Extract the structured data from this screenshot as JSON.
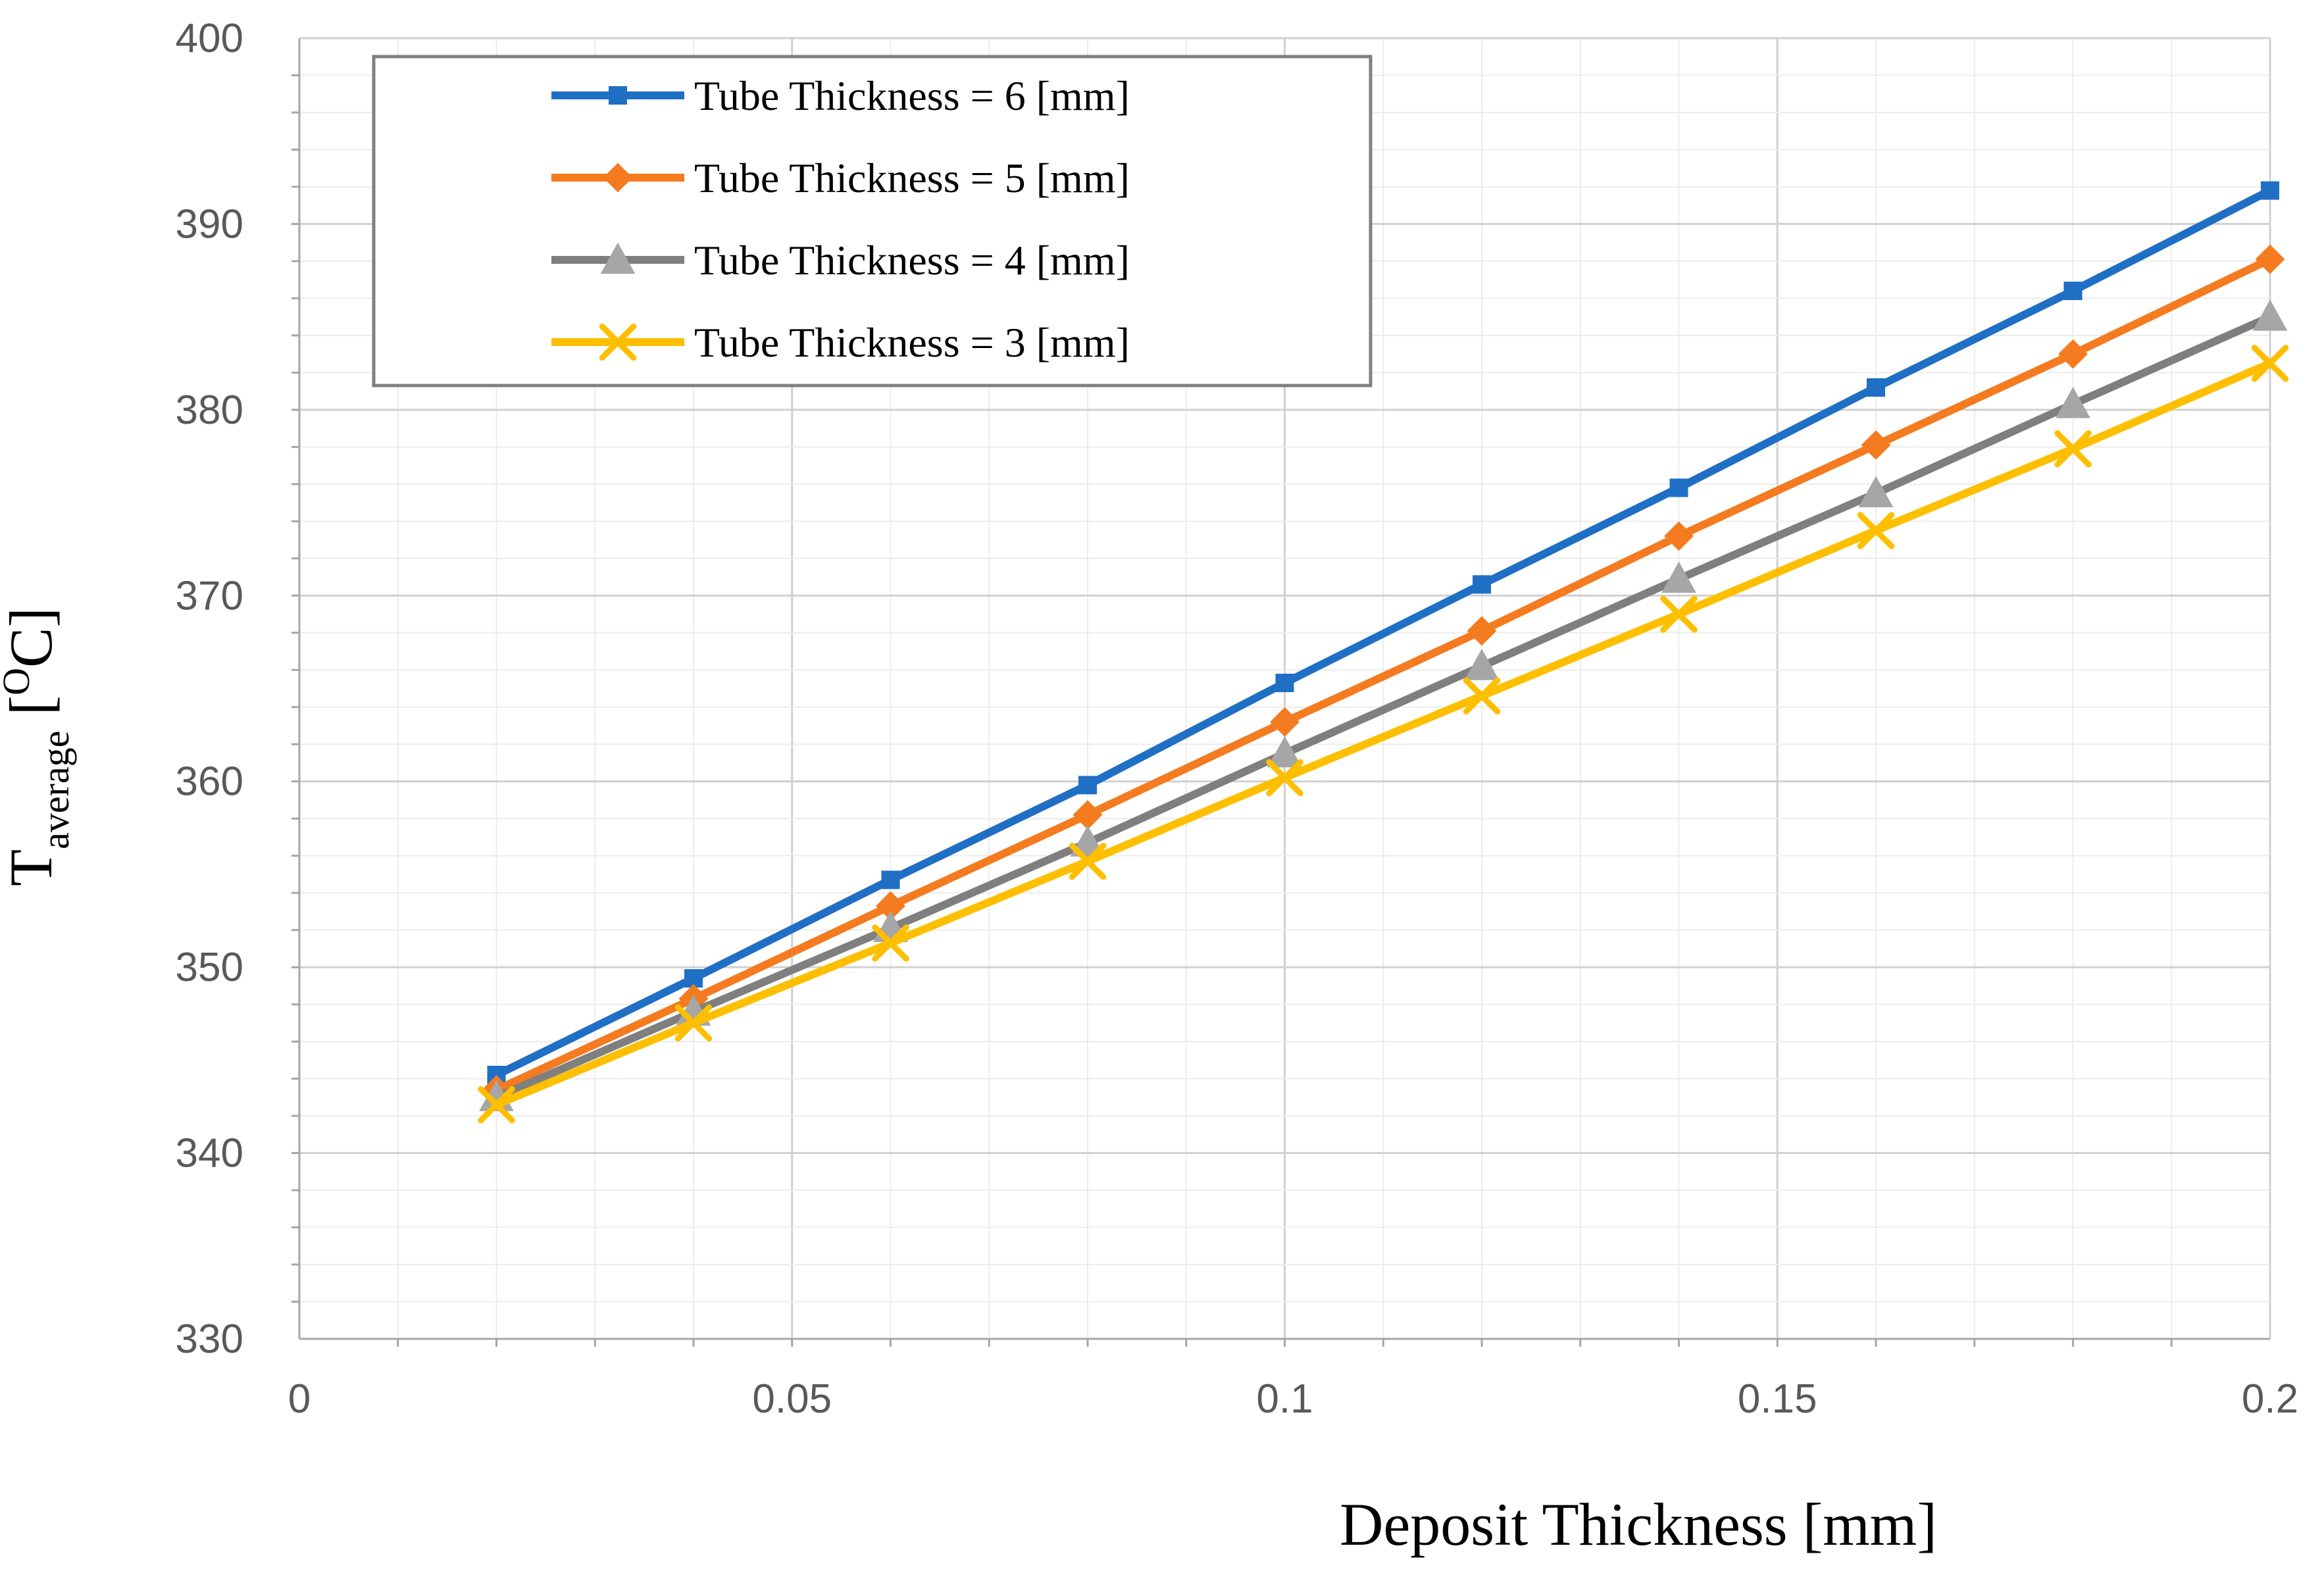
{
  "chart_data": {
    "type": "line",
    "title": "",
    "xlabel": "Deposit Thickness [mm]",
    "ylabel": {
      "main": "T",
      "subscript": "average",
      "unit_open": " [",
      "unit_superscript": "O",
      "unit_rest": "C]"
    },
    "xlim": [
      0,
      0.2
    ],
    "ylim": [
      330,
      400
    ],
    "x_ticks": [
      0,
      0.05,
      0.1,
      0.15,
      0.2
    ],
    "x_tick_labels": [
      "0",
      "0.05",
      "0.1",
      "0.15",
      "0.2"
    ],
    "y_ticks": [
      330,
      340,
      350,
      360,
      370,
      380,
      390,
      400
    ],
    "y_tick_labels": [
      "330",
      "340",
      "350",
      "360",
      "370",
      "380",
      "390",
      "400"
    ],
    "grid": true,
    "legend_position": "top-left",
    "x": [
      0.02,
      0.04,
      0.06,
      0.08,
      0.1,
      0.12,
      0.14,
      0.16,
      0.18,
      0.2
    ],
    "series": [
      {
        "name": "Tube Thickness = 6 [mm]",
        "color": "#1f6fc5",
        "marker": "square",
        "values": [
          344.2,
          349.4,
          354.7,
          359.8,
          365.3,
          370.6,
          375.8,
          381.2,
          386.4,
          391.8
        ]
      },
      {
        "name": "Tube Thickness = 5 [mm]",
        "color": "#f47b20",
        "marker": "diamond",
        "values": [
          343.4,
          348.3,
          353.3,
          358.2,
          363.2,
          368.1,
          373.2,
          378.1,
          383.0,
          388.1
        ]
      },
      {
        "name": "Tube Thickness = 4 [mm]",
        "color": "#7f7f7f",
        "marker": "triangle",
        "values": [
          343.0,
          347.6,
          352.1,
          356.7,
          361.5,
          366.2,
          370.9,
          375.5,
          380.3,
          385.0
        ]
      },
      {
        "name": "Tube Thickness = 3 [mm]",
        "color": "#fdbf00",
        "marker": "x",
        "values": [
          342.6,
          347.0,
          351.3,
          355.7,
          360.2,
          364.6,
          369.0,
          373.5,
          377.9,
          382.5
        ]
      }
    ]
  }
}
